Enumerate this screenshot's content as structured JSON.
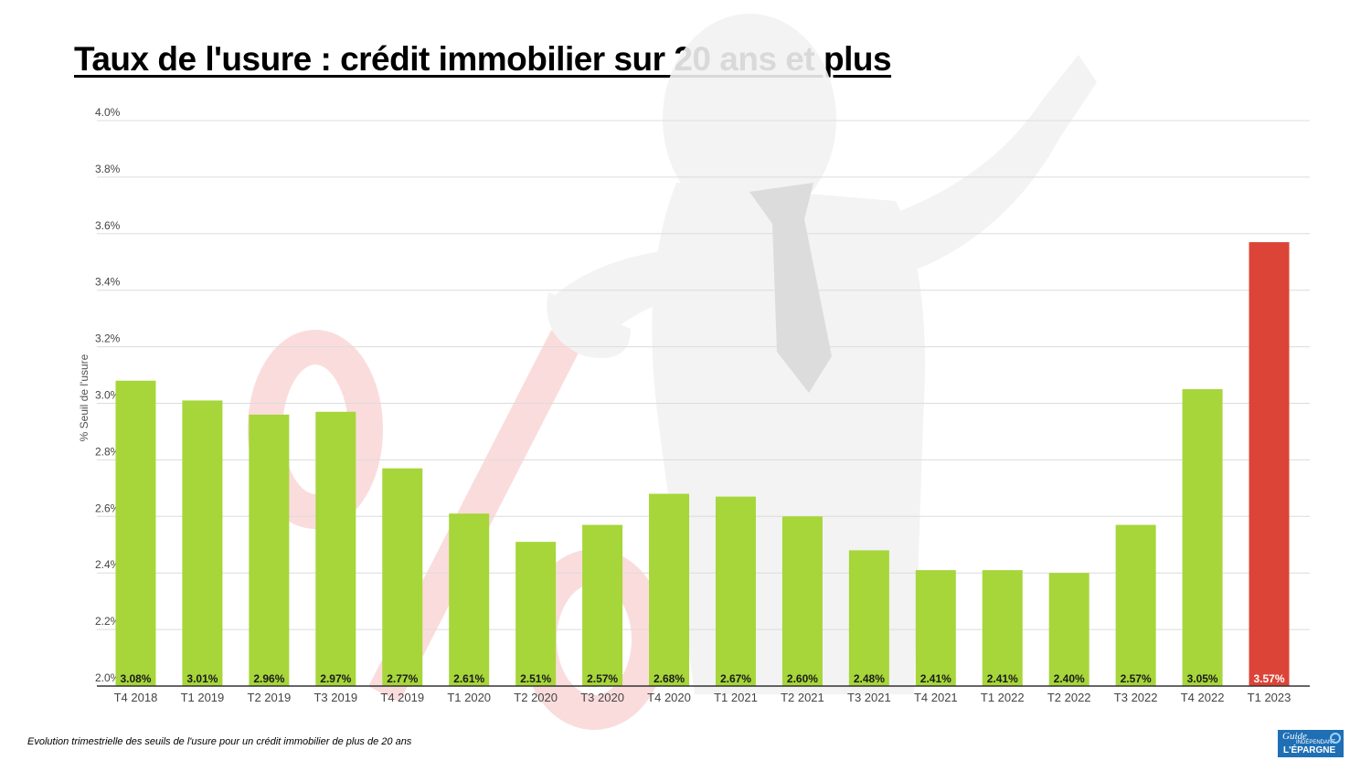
{
  "title": "Taux de l'usure : crédit immobilier sur 20 ans et plus",
  "caption": "Evolution trimestrielle des seuils de l'usure pour un crédit immobilier de plus de 20 ans",
  "logo": {
    "line1": "Guide",
    "line2": "INDÉPENDANT",
    "line3": "L'ÉPARGNE"
  },
  "colors": {
    "bar": "#a6d63a",
    "highlight": "#db4437",
    "label_dark": "#1a1a1a",
    "label_light": "#ffffff",
    "grid": "#dcdcdc"
  },
  "chart_data": {
    "type": "bar",
    "ylabel": "% Seuil de l'usure",
    "ylim": [
      2.0,
      4.0
    ],
    "yticks": [
      "2.0%",
      "2.2%",
      "2.4%",
      "2.6%",
      "2.8%",
      "3.0%",
      "3.2%",
      "3.4%",
      "3.6%",
      "3.8%",
      "4.0%"
    ],
    "ytick_values": [
      2.0,
      2.2,
      2.4,
      2.6,
      2.8,
      3.0,
      3.2,
      3.4,
      3.6,
      3.8,
      4.0
    ],
    "categories": [
      "T4 2018",
      "T1 2019",
      "T2 2019",
      "T3 2019",
      "T4 2019",
      "T1 2020",
      "T2 2020",
      "T3 2020",
      "T4 2020",
      "T1 2021",
      "T2 2021",
      "T3 2021",
      "T4 2021",
      "T1 2022",
      "T2 2022",
      "T3 2022",
      "T4 2022",
      "T1 2023"
    ],
    "values": [
      3.08,
      3.01,
      2.96,
      2.97,
      2.77,
      2.61,
      2.51,
      2.57,
      2.68,
      2.67,
      2.6,
      2.48,
      2.41,
      2.41,
      2.4,
      2.57,
      3.05,
      3.57
    ],
    "data_labels": [
      "3.08%",
      "3.01%",
      "2.96%",
      "2.97%",
      "2.77%",
      "2.61%",
      "2.51%",
      "2.57%",
      "2.68%",
      "2.67%",
      "2.60%",
      "2.48%",
      "2.41%",
      "2.41%",
      "2.40%",
      "2.57%",
      "3.05%",
      "3.57%"
    ],
    "highlight_index": 17,
    "grid": true
  }
}
